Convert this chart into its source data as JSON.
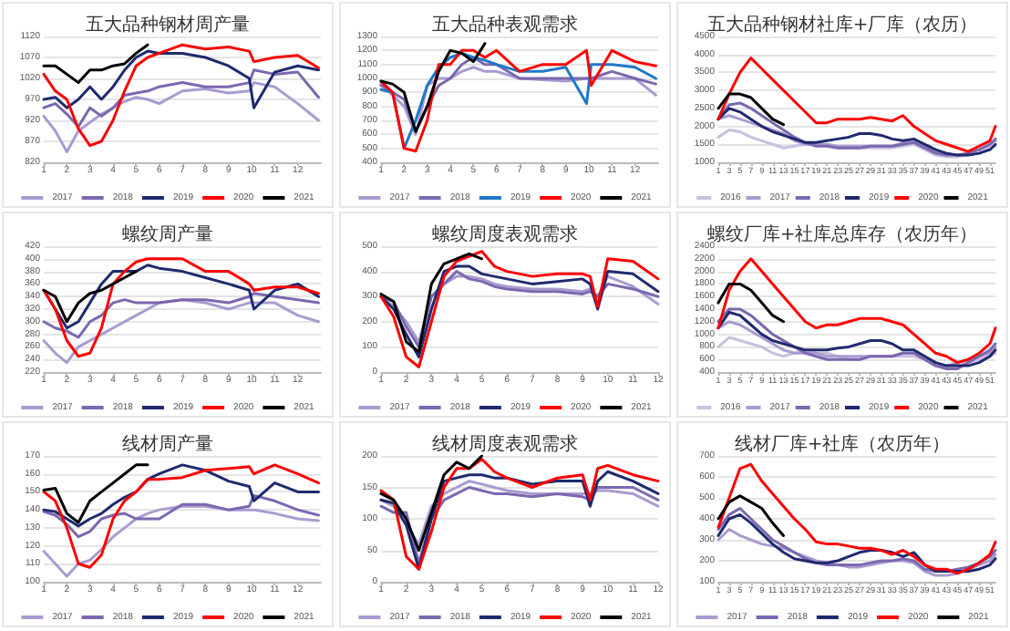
{
  "chart_data": [
    {
      "type": "line",
      "title": "五大品种钢材周产量",
      "x": [
        1,
        1.5,
        2,
        2.5,
        3,
        3.5,
        4,
        4.5,
        5,
        5.5,
        6,
        7,
        8,
        9,
        9.9,
        10.1,
        11,
        12,
        12.9
      ],
      "xlim": [
        1,
        13
      ],
      "xticks": [
        1,
        2,
        3,
        4,
        5,
        6,
        7,
        8,
        9,
        10,
        11,
        12
      ],
      "ylim": [
        820,
        1120
      ],
      "yticks": [
        820,
        870,
        920,
        970,
        1020,
        1070,
        1120
      ],
      "grid": "y",
      "legend": "bottom",
      "marker": "none",
      "series": [
        {
          "name": "2017",
          "color": "#a99bd0",
          "values": [
            930,
            895,
            845,
            895,
            915,
            935,
            950,
            965,
            975,
            970,
            960,
            990,
            995,
            985,
            990,
            1010,
            1000,
            960,
            920
          ]
        },
        {
          "name": "2018",
          "color": "#7b68b0",
          "values": [
            950,
            960,
            935,
            905,
            950,
            930,
            950,
            980,
            985,
            990,
            1000,
            1010,
            1000,
            1000,
            1010,
            1040,
            1030,
            1035,
            975
          ]
        },
        {
          "name": "2019",
          "color": "#1f2a6e",
          "values": [
            970,
            975,
            950,
            970,
            1000,
            970,
            1000,
            1040,
            1070,
            1085,
            1080,
            1080,
            1070,
            1050,
            1020,
            950,
            1035,
            1050,
            1040
          ]
        },
        {
          "name": "2020",
          "color": "#ff0000",
          "values": [
            1030,
            990,
            970,
            900,
            860,
            870,
            920,
            990,
            1050,
            1070,
            1080,
            1100,
            1090,
            1095,
            1085,
            1060,
            1070,
            1075,
            1045
          ]
        },
        {
          "name": "2021",
          "color": "#000000",
          "values": [
            1050,
            1050,
            1030,
            1010,
            1040,
            1040,
            1050,
            1055,
            1080,
            1100,
            null,
            null,
            null,
            null,
            null,
            null,
            null,
            null,
            null
          ]
        }
      ]
    },
    {
      "type": "line",
      "title": "五大品种表观需求",
      "x": [
        1,
        1.5,
        2,
        2.5,
        3,
        3.5,
        4,
        4.5,
        5,
        5.5,
        6,
        7,
        8,
        9,
        9.9,
        10.1,
        11,
        12,
        12.9
      ],
      "xlim": [
        1,
        13
      ],
      "xticks": [
        1,
        2,
        3,
        4,
        5,
        6,
        7,
        8,
        9,
        10,
        11,
        12
      ],
      "ylim": [
        400,
        1300
      ],
      "yticks": [
        400,
        500,
        600,
        700,
        800,
        900,
        1000,
        1100,
        1200,
        1300
      ],
      "grid": "y",
      "legend": "bottom",
      "marker": "none",
      "series": [
        {
          "name": "2017",
          "color": "#a99bd0",
          "values": [
            960,
            880,
            800,
            600,
            950,
            1000,
            1000,
            1050,
            1080,
            1050,
            1050,
            1000,
            990,
            980,
            1000,
            1000,
            1000,
            1000,
            880
          ]
        },
        {
          "name": "2018",
          "color": "#7b68b0",
          "values": [
            950,
            900,
            850,
            620,
            800,
            950,
            1000,
            1100,
            1150,
            1100,
            1100,
            1000,
            1000,
            1000,
            1000,
            1000,
            1050,
            1000,
            960
          ]
        },
        {
          "name": "2019",
          "color": "#1e78c8",
          "values": [
            920,
            900,
            500,
            700,
            950,
            1080,
            1150,
            1180,
            1150,
            1130,
            1100,
            1050,
            1050,
            1080,
            820,
            1100,
            1100,
            1080,
            1000
          ]
        },
        {
          "name": "2020",
          "color": "#ff0000",
          "values": [
            980,
            900,
            500,
            480,
            700,
            1100,
            1100,
            1200,
            1200,
            1150,
            1200,
            1050,
            1100,
            1100,
            1200,
            950,
            1200,
            1120,
            1090
          ]
        },
        {
          "name": "2021",
          "color": "#000000",
          "values": [
            980,
            960,
            900,
            620,
            800,
            1050,
            1200,
            1180,
            1120,
            1250,
            null,
            null,
            null,
            null,
            null,
            null,
            null,
            null,
            null
          ]
        }
      ]
    },
    {
      "type": "line",
      "title": "五大品种钢材社库+厂库（农历）",
      "x": [
        1,
        3,
        5,
        7,
        9,
        11,
        13,
        15,
        17,
        19,
        21,
        23,
        25,
        27,
        29,
        31,
        33,
        35,
        37,
        39,
        41,
        43,
        45,
        47,
        49,
        51,
        52
      ],
      "xlim": [
        1,
        52
      ],
      "xticks": [
        1,
        3,
        5,
        7,
        9,
        11,
        13,
        15,
        17,
        19,
        21,
        23,
        25,
        27,
        29,
        31,
        33,
        35,
        37,
        39,
        41,
        43,
        45,
        47,
        49,
        51
      ],
      "ylim": [
        1000,
        4500
      ],
      "yticks": [
        1000,
        1500,
        2000,
        2500,
        3000,
        3500,
        4000,
        4500
      ],
      "grid": "y",
      "legend": "bottom",
      "marker": "none",
      "series": [
        {
          "name": "2016",
          "color": "#c9bfe0",
          "values": [
            1700,
            1900,
            1850,
            1700,
            1600,
            1500,
            1400,
            1450,
            1500,
            1500,
            1450,
            1400,
            1400,
            1400,
            1400,
            1400,
            1400,
            1450,
            1500,
            1350,
            1200,
            1150,
            1150,
            1200,
            1250,
            1400,
            1450
          ]
        },
        {
          "name": "2017",
          "color": "#a99bd0",
          "values": [
            2200,
            2300,
            2200,
            2100,
            2000,
            1900,
            1800,
            1600,
            1500,
            1500,
            1500,
            1450,
            1450,
            1450,
            1450,
            1450,
            1450,
            1550,
            1600,
            1450,
            1300,
            1250,
            1200,
            1250,
            1350,
            1500,
            1600
          ]
        },
        {
          "name": "2018",
          "color": "#7b68b0",
          "values": [
            2200,
            2600,
            2650,
            2500,
            2300,
            2100,
            1900,
            1700,
            1550,
            1450,
            1450,
            1400,
            1400,
            1400,
            1450,
            1450,
            1450,
            1500,
            1550,
            1400,
            1250,
            1200,
            1200,
            1250,
            1350,
            1500,
            1650
          ]
        },
        {
          "name": "2019",
          "color": "#1f2a6e",
          "values": [
            2200,
            2500,
            2400,
            2200,
            2000,
            1850,
            1750,
            1650,
            1550,
            1550,
            1600,
            1650,
            1700,
            1800,
            1800,
            1750,
            1650,
            1600,
            1650,
            1500,
            1350,
            1250,
            1200,
            1200,
            1250,
            1350,
            1500
          ]
        },
        {
          "name": "2020",
          "color": "#ff0000",
          "values": [
            2200,
            2900,
            3500,
            3900,
            3600,
            3300,
            3000,
            2700,
            2400,
            2100,
            2100,
            2200,
            2200,
            2200,
            2250,
            2200,
            2150,
            2300,
            2000,
            1800,
            1600,
            1500,
            1400,
            1300,
            1450,
            1600,
            2000
          ]
        },
        {
          "name": "2021",
          "color": "#000000",
          "values": [
            2500,
            2900,
            2900,
            2800,
            2500,
            2200,
            2050,
            null,
            null,
            null,
            null,
            null,
            null,
            null,
            null,
            null,
            null,
            null,
            null,
            null,
            null,
            null,
            null,
            null,
            null,
            null,
            null
          ]
        }
      ]
    },
    {
      "type": "line",
      "title": "螺纹周产量",
      "x": [
        1,
        1.5,
        2,
        2.5,
        3,
        3.5,
        4,
        4.5,
        5,
        5.5,
        6,
        7,
        8,
        9,
        9.9,
        10.1,
        11,
        12,
        12.9
      ],
      "xlim": [
        1,
        13
      ],
      "xticks": [
        1,
        2,
        3,
        4,
        5,
        6,
        7,
        8,
        9,
        10,
        11,
        12
      ],
      "ylim": [
        220,
        420
      ],
      "yticks": [
        220,
        240,
        260,
        280,
        300,
        320,
        340,
        360,
        380,
        400,
        420
      ],
      "grid": "y",
      "legend": "bottom",
      "marker": "none",
      "series": [
        {
          "name": "2017",
          "color": "#a99bd0",
          "values": [
            270,
            250,
            235,
            260,
            270,
            280,
            290,
            300,
            310,
            320,
            330,
            335,
            330,
            320,
            330,
            330,
            330,
            310,
            300
          ]
        },
        {
          "name": "2018",
          "color": "#7b68b0",
          "values": [
            300,
            290,
            285,
            275,
            300,
            310,
            330,
            335,
            330,
            330,
            330,
            335,
            335,
            330,
            340,
            345,
            340,
            335,
            330
          ]
        },
        {
          "name": "2019",
          "color": "#1f2a6e",
          "values": [
            350,
            320,
            290,
            300,
            330,
            360,
            380,
            380,
            380,
            390,
            385,
            380,
            370,
            360,
            350,
            320,
            350,
            360,
            340
          ]
        },
        {
          "name": "2020",
          "color": "#ff0000",
          "values": [
            350,
            320,
            270,
            245,
            250,
            290,
            360,
            380,
            395,
            400,
            400,
            400,
            380,
            380,
            360,
            350,
            355,
            355,
            345
          ]
        },
        {
          "name": "2021",
          "color": "#000000",
          "values": [
            350,
            340,
            300,
            330,
            345,
            350,
            360,
            370,
            380,
            null,
            null,
            null,
            null,
            null,
            null,
            null,
            null,
            null,
            null
          ]
        }
      ]
    },
    {
      "type": "line",
      "title": "螺纹周度表观需求",
      "x": [
        1,
        1.5,
        2,
        2.5,
        3,
        3.5,
        4,
        4.5,
        5,
        5.5,
        6,
        7,
        8,
        9,
        9.3,
        9.6,
        10,
        11,
        12
      ],
      "xlim": [
        1,
        12
      ],
      "xticks": [
        1,
        2,
        3,
        4,
        5,
        6,
        7,
        8,
        9,
        10,
        11,
        12
      ],
      "ylim": [
        0,
        500
      ],
      "yticks": [
        0,
        100,
        200,
        300,
        400,
        500
      ],
      "grid": "y",
      "legend": "bottom",
      "marker": "none",
      "series": [
        {
          "name": "2017",
          "color": "#a99bd0",
          "values": [
            300,
            260,
            200,
            120,
            300,
            350,
            380,
            380,
            370,
            350,
            340,
            330,
            330,
            320,
            330,
            300,
            380,
            340,
            270
          ]
        },
        {
          "name": "2018",
          "color": "#7b68b0",
          "values": [
            300,
            280,
            180,
            100,
            300,
            350,
            400,
            370,
            360,
            340,
            330,
            320,
            320,
            310,
            320,
            300,
            350,
            330,
            300
          ]
        },
        {
          "name": "2019",
          "color": "#1f2a6e",
          "values": [
            300,
            250,
            150,
            60,
            250,
            400,
            420,
            420,
            390,
            380,
            370,
            350,
            360,
            370,
            350,
            250,
            400,
            390,
            320
          ]
        },
        {
          "name": "2020",
          "color": "#ff0000",
          "values": [
            300,
            220,
            60,
            20,
            200,
            380,
            440,
            460,
            480,
            420,
            400,
            380,
            390,
            390,
            380,
            260,
            450,
            440,
            370
          ]
        },
        {
          "name": "2021",
          "color": "#000000",
          "values": [
            310,
            280,
            120,
            80,
            350,
            430,
            450,
            470,
            450,
            null,
            null,
            null,
            null,
            null,
            null,
            null,
            null,
            null,
            null
          ]
        }
      ]
    },
    {
      "type": "line",
      "title": "螺纹厂库+社库总库存（农历年）",
      "x": [
        1,
        3,
        5,
        7,
        9,
        11,
        13,
        15,
        17,
        19,
        21,
        23,
        25,
        27,
        29,
        31,
        33,
        35,
        37,
        39,
        41,
        43,
        45,
        47,
        49,
        51,
        52
      ],
      "xlim": [
        1,
        52
      ],
      "xticks": [
        1,
        3,
        5,
        7,
        9,
        11,
        13,
        15,
        17,
        19,
        21,
        23,
        25,
        27,
        29,
        31,
        33,
        35,
        37,
        39,
        41,
        43,
        45,
        47,
        49,
        51
      ],
      "ylim": [
        400,
        2400
      ],
      "yticks": [
        400,
        600,
        800,
        1000,
        1200,
        1400,
        1600,
        1800,
        2000,
        2200,
        2400
      ],
      "grid": "y",
      "legend": "bottom",
      "marker": "none",
      "series": [
        {
          "name": "2016",
          "color": "#c9bfe0",
          "values": [
            800,
            950,
            900,
            850,
            800,
            700,
            650,
            700,
            750,
            700,
            700,
            650,
            600,
            600,
            650,
            650,
            650,
            650,
            650,
            600,
            550,
            500,
            500,
            550,
            600,
            650,
            700
          ]
        },
        {
          "name": "2017",
          "color": "#a99bd0",
          "values": [
            1100,
            1200,
            1150,
            1050,
            950,
            850,
            750,
            700,
            700,
            700,
            650,
            650,
            650,
            650,
            650,
            650,
            650,
            700,
            700,
            600,
            500,
            500,
            550,
            600,
            650,
            700,
            800
          ]
        },
        {
          "name": "2018",
          "color": "#7b68b0",
          "values": [
            1200,
            1400,
            1400,
            1300,
            1150,
            1000,
            900,
            800,
            700,
            650,
            600,
            600,
            600,
            600,
            650,
            650,
            650,
            700,
            700,
            600,
            500,
            450,
            450,
            550,
            650,
            750,
            850
          ]
        },
        {
          "name": "2019",
          "color": "#1f2a6e",
          "values": [
            1100,
            1350,
            1300,
            1150,
            1000,
            900,
            850,
            800,
            750,
            750,
            750,
            780,
            800,
            850,
            900,
            900,
            850,
            750,
            750,
            650,
            550,
            500,
            500,
            500,
            550,
            650,
            750
          ]
        },
        {
          "name": "2020",
          "color": "#ff0000",
          "values": [
            1100,
            1700,
            2000,
            2200,
            2000,
            1800,
            1600,
            1400,
            1200,
            1100,
            1150,
            1150,
            1200,
            1250,
            1250,
            1250,
            1200,
            1150,
            1000,
            850,
            700,
            650,
            550,
            600,
            700,
            850,
            1100
          ]
        },
        {
          "name": "2021",
          "color": "#000000",
          "values": [
            1500,
            1800,
            1800,
            1700,
            1500,
            1300,
            1200,
            null,
            null,
            null,
            null,
            null,
            null,
            null,
            null,
            null,
            null,
            null,
            null,
            null,
            null,
            null,
            null,
            null,
            null,
            null,
            null
          ]
        }
      ]
    },
    {
      "type": "line",
      "title": "线材周产量",
      "x": [
        1,
        1.5,
        2,
        2.5,
        3,
        3.5,
        4,
        4.5,
        5,
        5.5,
        6,
        7,
        8,
        9,
        9.9,
        10.1,
        11,
        12,
        12.9
      ],
      "xlim": [
        1,
        13
      ],
      "xticks": [
        1,
        2,
        3,
        4,
        5,
        6,
        7,
        8,
        9,
        10,
        11,
        12
      ],
      "ylim": [
        100,
        170
      ],
      "yticks": [
        100,
        110,
        120,
        130,
        140,
        150,
        160,
        170
      ],
      "grid": "y",
      "legend": "bottom",
      "marker": "none",
      "series": [
        {
          "name": "2017",
          "color": "#a99bd0",
          "values": [
            117,
            110,
            103,
            110,
            112,
            118,
            125,
            130,
            135,
            138,
            140,
            142,
            142,
            140,
            140,
            140,
            138,
            135,
            134
          ]
        },
        {
          "name": "2018",
          "color": "#7b68b0",
          "values": [
            139,
            137,
            132,
            125,
            128,
            135,
            137,
            138,
            135,
            135,
            135,
            143,
            143,
            140,
            142,
            148,
            145,
            140,
            137
          ]
        },
        {
          "name": "2019",
          "color": "#1f2a6e",
          "values": [
            140,
            139,
            135,
            131,
            135,
            138,
            143,
            147,
            150,
            157,
            160,
            165,
            162,
            156,
            153,
            145,
            155,
            150,
            150
          ]
        },
        {
          "name": "2020",
          "color": "#ff0000",
          "values": [
            150,
            145,
            130,
            110,
            108,
            115,
            135,
            145,
            150,
            157,
            157,
            158,
            162,
            163,
            164,
            160,
            165,
            160,
            155
          ]
        },
        {
          "name": "2021",
          "color": "#000000",
          "values": [
            151,
            152,
            138,
            133,
            145,
            150,
            155,
            160,
            165,
            165,
            null,
            null,
            null,
            null,
            null,
            null,
            null,
            null,
            null
          ]
        }
      ]
    },
    {
      "type": "line",
      "title": "线材周度表观需求",
      "x": [
        1,
        1.5,
        2,
        2.5,
        3,
        3.5,
        4,
        4.5,
        5,
        5.5,
        6,
        7,
        8,
        9,
        9.3,
        9.6,
        10,
        11,
        12
      ],
      "xlim": [
        1,
        12
      ],
      "xticks": [
        1,
        2,
        3,
        4,
        5,
        6,
        7,
        8,
        9,
        10,
        11,
        12
      ],
      "ylim": [
        0,
        200
      ],
      "yticks": [
        0,
        50,
        100,
        150,
        200
      ],
      "grid": "y",
      "legend": "bottom",
      "marker": "none",
      "series": [
        {
          "name": "2017",
          "color": "#a99bd0",
          "values": [
            130,
            120,
            90,
            60,
            120,
            140,
            150,
            160,
            155,
            150,
            145,
            140,
            140,
            140,
            140,
            145,
            145,
            140,
            120
          ]
        },
        {
          "name": "2018",
          "color": "#7b68b0",
          "values": [
            120,
            110,
            110,
            30,
            100,
            130,
            140,
            150,
            145,
            140,
            140,
            135,
            140,
            135,
            130,
            150,
            150,
            150,
            130
          ]
        },
        {
          "name": "2019",
          "color": "#1f2a6e",
          "values": [
            130,
            125,
            90,
            20,
            100,
            160,
            165,
            170,
            170,
            165,
            165,
            155,
            160,
            160,
            120,
            160,
            175,
            160,
            140
          ]
        },
        {
          "name": "2020",
          "color": "#ff0000",
          "values": [
            145,
            130,
            40,
            20,
            80,
            150,
            180,
            180,
            195,
            175,
            165,
            150,
            165,
            170,
            130,
            180,
            185,
            170,
            160
          ]
        },
        {
          "name": "2021",
          "color": "#000000",
          "values": [
            140,
            130,
            100,
            50,
            110,
            170,
            190,
            180,
            200,
            null,
            null,
            null,
            null,
            null,
            null,
            null,
            null,
            null,
            null
          ]
        }
      ]
    },
    {
      "type": "line",
      "title": "线材厂库+社库（农历年）",
      "x": [
        1,
        3,
        5,
        7,
        9,
        11,
        13,
        15,
        17,
        19,
        21,
        23,
        25,
        27,
        29,
        31,
        33,
        35,
        37,
        39,
        41,
        43,
        45,
        47,
        49,
        51,
        52
      ],
      "xlim": [
        1,
        52
      ],
      "xticks": [
        1,
        3,
        5,
        7,
        9,
        11,
        13,
        15,
        17,
        19,
        21,
        23,
        25,
        27,
        29,
        31,
        33,
        35,
        37,
        39,
        41,
        43,
        45,
        47,
        49,
        51
      ],
      "ylim": [
        100,
        700
      ],
      "yticks": [
        100,
        200,
        300,
        400,
        500,
        600,
        700
      ],
      "grid": "y",
      "legend": "bottom",
      "marker": "none",
      "series": [
        {
          "name": "2017",
          "color": "#a99bd0",
          "values": [
            300,
            350,
            320,
            300,
            280,
            270,
            260,
            240,
            220,
            200,
            190,
            180,
            170,
            170,
            180,
            190,
            200,
            200,
            190,
            150,
            130,
            130,
            140,
            160,
            180,
            200,
            230
          ]
        },
        {
          "name": "2018",
          "color": "#7b68b0",
          "values": [
            350,
            420,
            450,
            400,
            350,
            300,
            270,
            240,
            210,
            190,
            180,
            180,
            180,
            180,
            190,
            200,
            200,
            210,
            200,
            160,
            150,
            150,
            160,
            170,
            190,
            220,
            250
          ]
        },
        {
          "name": "2019",
          "color": "#1f2a6e",
          "values": [
            320,
            400,
            420,
            380,
            330,
            280,
            240,
            210,
            200,
            190,
            190,
            200,
            220,
            240,
            250,
            250,
            240,
            220,
            240,
            180,
            150,
            150,
            150,
            150,
            160,
            180,
            210
          ]
        },
        {
          "name": "2020",
          "color": "#ff0000",
          "values": [
            360,
            500,
            640,
            660,
            580,
            520,
            460,
            400,
            350,
            290,
            280,
            280,
            270,
            260,
            260,
            250,
            230,
            250,
            220,
            180,
            160,
            160,
            140,
            160,
            190,
            230,
            290
          ]
        },
        {
          "name": "2021",
          "color": "#000000",
          "values": [
            400,
            480,
            510,
            480,
            450,
            380,
            320,
            null,
            null,
            null,
            null,
            null,
            null,
            null,
            null,
            null,
            null,
            null,
            null,
            null,
            null,
            null,
            null,
            null,
            null,
            null,
            null
          ]
        }
      ]
    }
  ]
}
